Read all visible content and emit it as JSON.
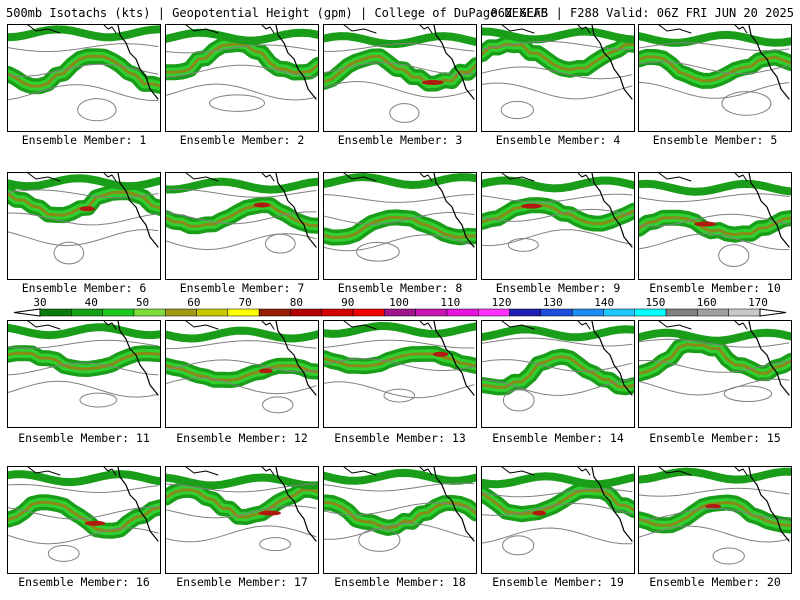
{
  "header": {
    "title_left": "500mb Isotachs (kts) | Geopotential Height (gpm) | College of DuPage NEXLAB",
    "title_right": "06Z GEFS | F288 Valid: 06Z FRI JUN 20 2025"
  },
  "panels": [
    {
      "label": "Ensemble Member: 1"
    },
    {
      "label": "Ensemble Member: 2"
    },
    {
      "label": "Ensemble Member: 3"
    },
    {
      "label": "Ensemble Member: 4"
    },
    {
      "label": "Ensemble Member: 5"
    },
    {
      "label": "Ensemble Member: 6"
    },
    {
      "label": "Ensemble Member: 7"
    },
    {
      "label": "Ensemble Member: 8"
    },
    {
      "label": "Ensemble Member: 9"
    },
    {
      "label": "Ensemble Member: 10"
    },
    {
      "label": "Ensemble Member: 11"
    },
    {
      "label": "Ensemble Member: 12"
    },
    {
      "label": "Ensemble Member: 13"
    },
    {
      "label": "Ensemble Member: 14"
    },
    {
      "label": "Ensemble Member: 15"
    },
    {
      "label": "Ensemble Member: 16"
    },
    {
      "label": "Ensemble Member: 17"
    },
    {
      "label": "Ensemble Member: 18"
    },
    {
      "label": "Ensemble Member: 19"
    },
    {
      "label": "Ensemble Member: 20"
    }
  ],
  "colorbar": {
    "ticks": [
      "30",
      "40",
      "50",
      "60",
      "70",
      "80",
      "90",
      "100",
      "110",
      "120",
      "130",
      "140",
      "150",
      "160",
      "170"
    ],
    "colors": [
      "#0a7a0a",
      "#14a014",
      "#1ec81e",
      "#7fdc3c",
      "#a09a14",
      "#c8c800",
      "#ffff00",
      "#961e00",
      "#b40000",
      "#d20000",
      "#f00000",
      "#a0148c",
      "#c814b4",
      "#e614dc",
      "#ff32ff",
      "#1e1eb4",
      "#1e50dc",
      "#1e8cf0",
      "#1ec8ff",
      "#00ffff",
      "#808080",
      "#a0a0a0",
      "#c8c8c8"
    ]
  },
  "map_colors": {
    "jet_outer": "#1a9e1a",
    "jet_mid": "#2fd02f",
    "jet_core": "#8a8a1a",
    "jet_max": "#b01a10",
    "height_contour": "#808080",
    "coastline": "#000000"
  }
}
